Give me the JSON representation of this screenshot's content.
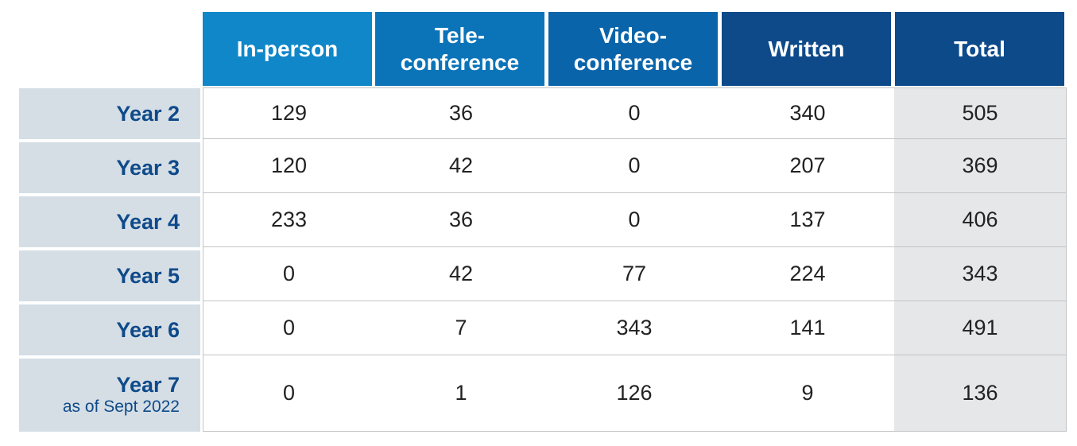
{
  "table": {
    "columns": [
      [
        "In-person"
      ],
      [
        "Tele-",
        "conference"
      ],
      [
        "Video-",
        "conference"
      ],
      [
        "Written"
      ],
      [
        "Total"
      ]
    ],
    "rows": [
      {
        "label": "Year 2",
        "cells": [
          129,
          36,
          0,
          340,
          505
        ]
      },
      {
        "label": "Year 3",
        "cells": [
          120,
          42,
          0,
          207,
          369
        ]
      },
      {
        "label": "Year 4",
        "cells": [
          233,
          36,
          0,
          137,
          406
        ]
      },
      {
        "label": "Year 5",
        "cells": [
          0,
          42,
          77,
          224,
          343
        ]
      },
      {
        "label": "Year 6",
        "cells": [
          0,
          7,
          343,
          141,
          491
        ]
      },
      {
        "label": "Year 7",
        "note": "as of Sept 2022",
        "cells": [
          0,
          1,
          126,
          9,
          136
        ]
      }
    ]
  }
}
